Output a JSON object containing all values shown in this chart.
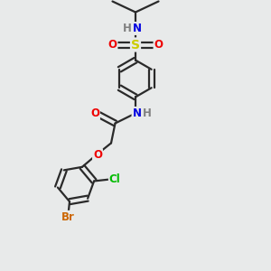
{
  "bg_color": "#e8eaea",
  "bond_color": "#2a2a2a",
  "bond_width": 1.6,
  "atom_colors": {
    "H": "#808080",
    "N": "#0000e0",
    "O": "#ee0000",
    "S": "#cccc00",
    "Cl": "#00bb00",
    "Br": "#cc6600",
    "C": "#2a2a2a"
  },
  "font_size": 8.5
}
